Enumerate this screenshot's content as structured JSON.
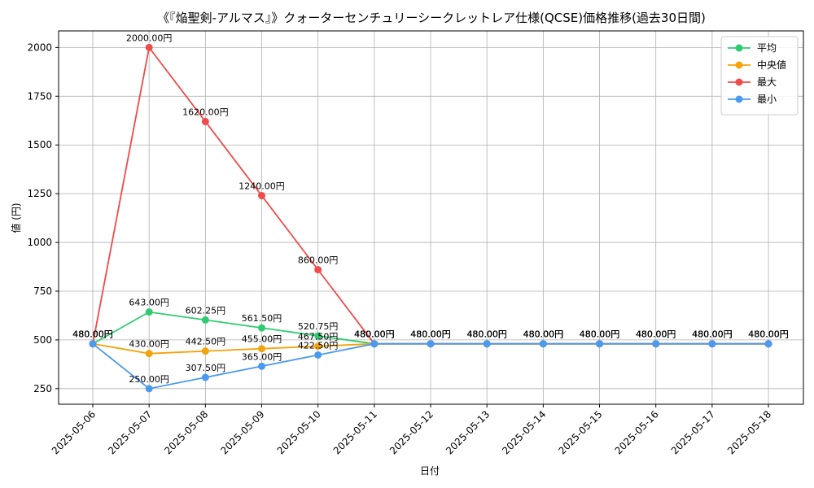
{
  "chart_data": {
    "type": "line",
    "title": "《『焔聖剣-アルマス』》クォーターセンチュリーシークレットレア仕様(QCSE)価格推移(過去30日間)",
    "xlabel": "日付",
    "ylabel": "値 (円)",
    "categories": [
      "2025-05-06",
      "2025-05-07",
      "2025-05-08",
      "2025-05-09",
      "2025-05-10",
      "2025-05-11",
      "2025-05-12",
      "2025-05-13",
      "2025-05-14",
      "2025-05-15",
      "2025-05-16",
      "2025-05-17",
      "2025-05-18"
    ],
    "ylim": [
      170,
      2085
    ],
    "yticks": [
      250,
      500,
      750,
      1000,
      1250,
      1500,
      1750,
      2000
    ],
    "grid": true,
    "legend_position": "top-right",
    "label_suffix": "円",
    "series": [
      {
        "name": "平均",
        "color": "#2ecc71",
        "values": [
          480,
          643,
          602.25,
          561.5,
          520.75,
          480,
          480,
          480,
          480,
          480,
          480,
          480,
          480
        ]
      },
      {
        "name": "中央値",
        "color": "#f5a30a",
        "values": [
          480,
          430,
          442.5,
          455,
          467.5,
          480,
          480,
          480,
          480,
          480,
          480,
          480,
          480
        ]
      },
      {
        "name": "最大",
        "color": "#f04a4a",
        "values": [
          480,
          2000,
          1620,
          1240,
          860,
          480,
          480,
          480,
          480,
          480,
          480,
          480,
          480
        ]
      },
      {
        "name": "最小",
        "color": "#4a9af0",
        "values": [
          480,
          250,
          307.5,
          365,
          422.5,
          480,
          480,
          480,
          480,
          480,
          480,
          480,
          480
        ]
      }
    ]
  }
}
